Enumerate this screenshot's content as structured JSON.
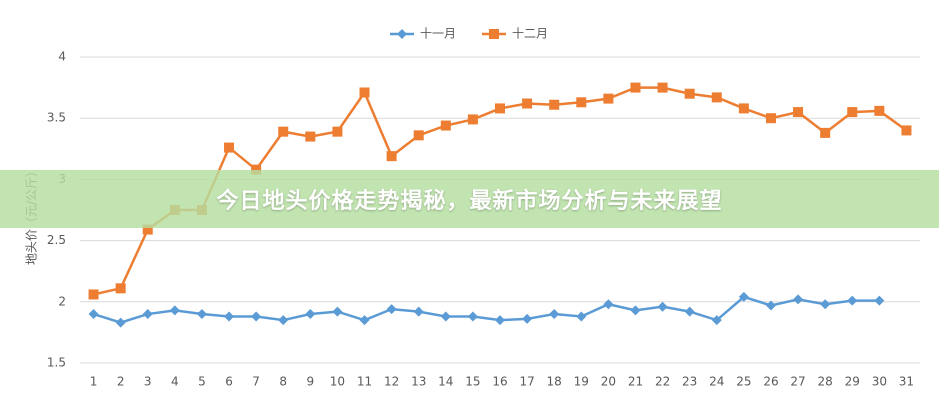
{
  "chart_data": {
    "type": "line",
    "y_label": "地头价（元/公斤）",
    "categories": [
      "1",
      "2",
      "3",
      "4",
      "5",
      "6",
      "7",
      "8",
      "9",
      "10",
      "11",
      "12",
      "13",
      "14",
      "15",
      "16",
      "17",
      "18",
      "19",
      "20",
      "21",
      "22",
      "23",
      "24",
      "25",
      "26",
      "27",
      "28",
      "29",
      "30",
      "31"
    ],
    "series": [
      {
        "name": "十一月",
        "color": "#5b9bd5",
        "marker": "diamond",
        "values": [
          1.9,
          1.83,
          1.9,
          1.93,
          1.9,
          1.88,
          1.88,
          1.85,
          1.9,
          1.92,
          1.85,
          1.94,
          1.92,
          1.88,
          1.88,
          1.85,
          1.86,
          1.9,
          1.88,
          1.98,
          1.93,
          1.96,
          1.92,
          1.85,
          2.04,
          1.97,
          2.02,
          1.98,
          2.01,
          2.01,
          null
        ]
      },
      {
        "name": "十二月",
        "color": "#ed7d31",
        "marker": "square",
        "values": [
          2.06,
          2.11,
          2.59,
          2.75,
          2.75,
          3.26,
          3.08,
          3.39,
          3.35,
          3.39,
          3.71,
          3.19,
          3.36,
          3.44,
          3.49,
          3.58,
          3.62,
          3.61,
          3.63,
          3.66,
          3.75,
          3.75,
          3.7,
          3.67,
          3.58,
          3.5,
          3.55,
          3.38,
          3.55,
          3.56,
          3.4
        ]
      }
    ],
    "ylim": [
      1.5,
      4
    ],
    "yticks": [
      1.5,
      2,
      2.5,
      3,
      3.5,
      4
    ],
    "grid": true,
    "legend": "top"
  },
  "banner": {
    "text": "今日地头价格走势揭秘，最新市场分析与未来展望"
  }
}
